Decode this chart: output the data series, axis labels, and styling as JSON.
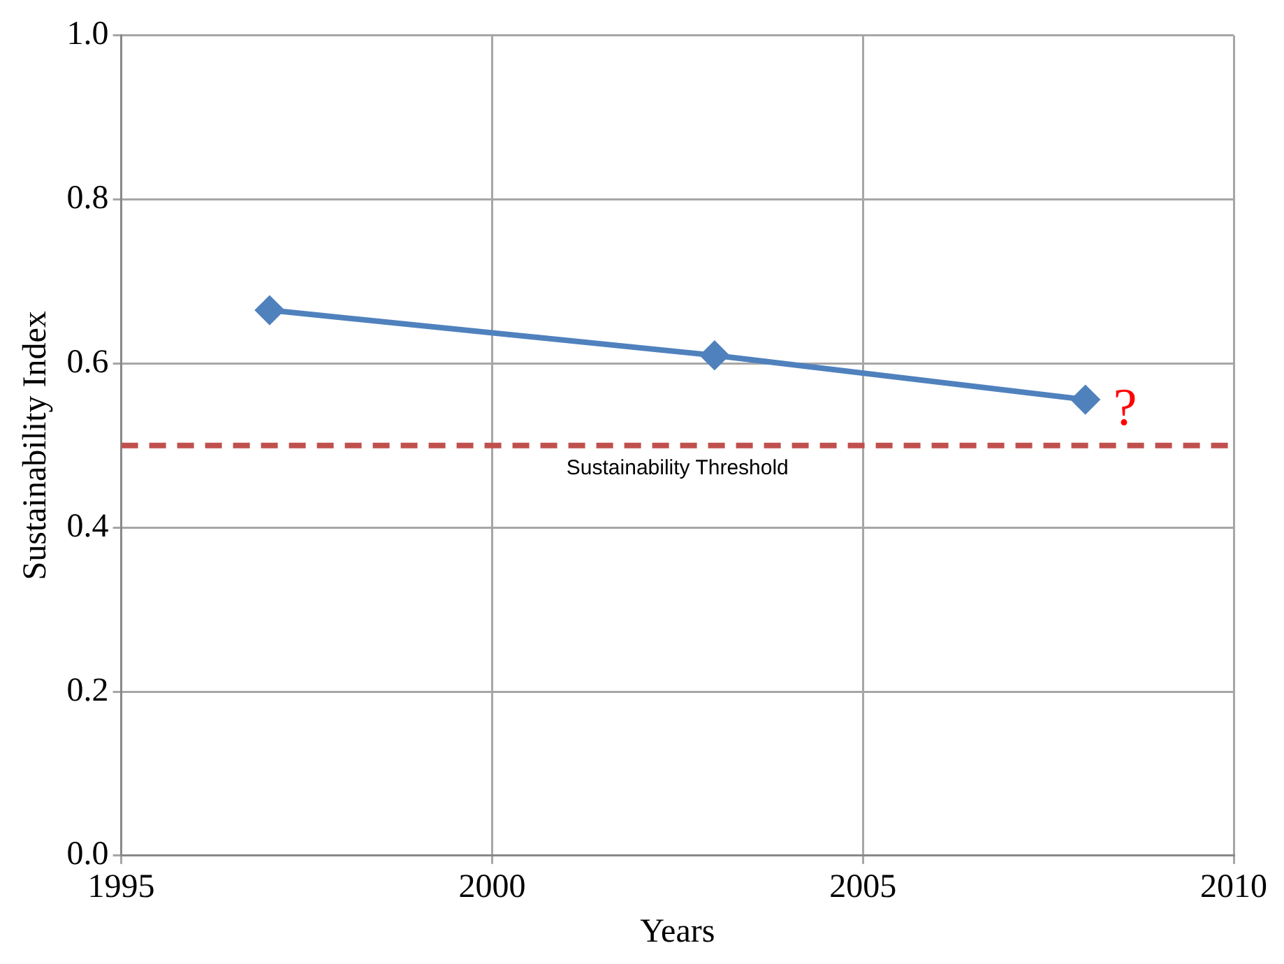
{
  "chart_data": {
    "type": "line",
    "xlabel": "Years",
    "ylabel": "Sustainability Index",
    "x": [
      1997,
      2003,
      2008
    ],
    "series": [
      {
        "color": "#4f81bd",
        "values": [
          0.665,
          0.61,
          0.556
        ]
      }
    ],
    "xlim": [
      1995,
      2010
    ],
    "xticks": [
      1995,
      2000,
      2005,
      2010
    ],
    "ylim": [
      0,
      1
    ],
    "yticks": [
      {
        "value": 0,
        "label": "0.0"
      },
      {
        "value": 0.2,
        "label": "0.2"
      },
      {
        "value": 0.4,
        "label": "0.4"
      },
      {
        "value": 0.6,
        "label": "0.6"
      },
      {
        "value": 0.8,
        "label": "0.8"
      },
      {
        "value": 1,
        "label": "1.0"
      }
    ],
    "grid": true,
    "legend": false,
    "marker": "diamond",
    "line_style": "solid",
    "ref_lines": [
      {
        "axis": "y",
        "value": 0.5,
        "label": "Sustainability Threshold",
        "color": "#c0504d",
        "line_style": "dashed"
      }
    ],
    "annotations": [
      "?"
    ]
  }
}
